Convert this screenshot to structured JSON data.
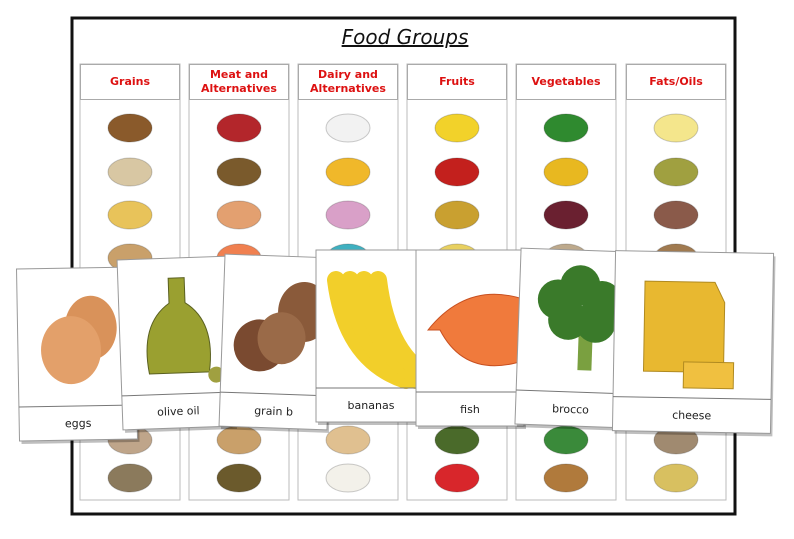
{
  "title": "Food Groups",
  "columns": [
    "Grains",
    "Meat and Alternatives",
    "Dairy and Alternatives",
    "Fruits",
    "Vegetables",
    "Fats/Oils"
  ],
  "cards": [
    "eggs",
    "olive oil",
    "grain b",
    "bananas",
    "fish",
    "brocco",
    "cheese"
  ]
}
